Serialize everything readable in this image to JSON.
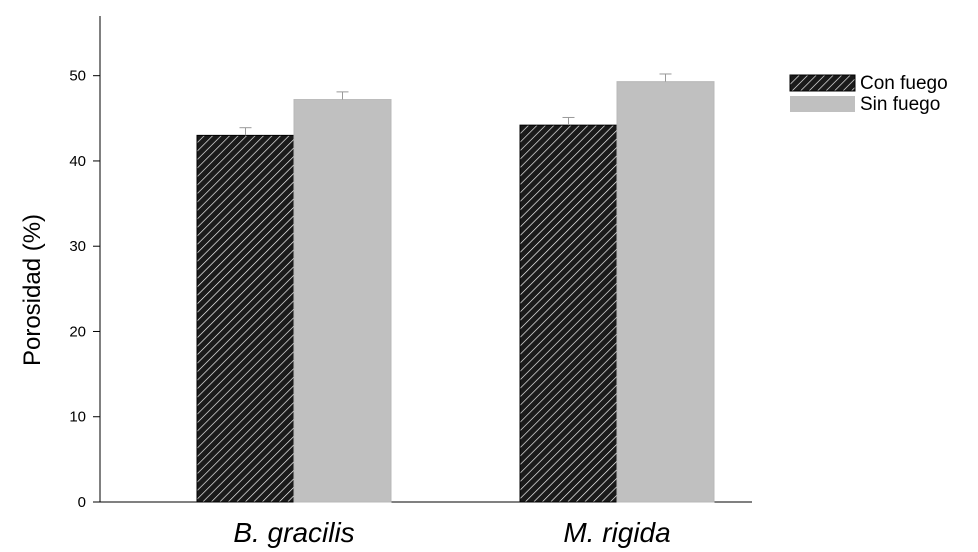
{
  "colors": {
    "con_fuego_fill": "#1a1a1a",
    "con_fuego_hatch": "#ffffff",
    "sin_fuego_fill": "#c0c0c0",
    "axis": "#000000",
    "error_bar": "#999999"
  },
  "chart_data": {
    "type": "bar",
    "title": "",
    "xlabel": "",
    "ylabel": "Porosidad (%)",
    "ylim": [
      0,
      57
    ],
    "yticks": [
      0,
      10,
      20,
      30,
      40,
      50
    ],
    "categories": [
      "B. gracilis",
      "M. rigida"
    ],
    "series": [
      {
        "name": "Con fuego",
        "values": [
          43.0,
          44.2
        ],
        "errors": [
          0.9,
          0.9
        ],
        "pattern": "hatched",
        "color": "#1a1a1a"
      },
      {
        "name": "Sin fuego",
        "values": [
          47.2,
          49.3
        ],
        "errors": [
          0.9,
          0.9
        ],
        "pattern": "solid",
        "color": "#c0c0c0"
      }
    ],
    "legend_position": "top-right",
    "grid": false
  }
}
